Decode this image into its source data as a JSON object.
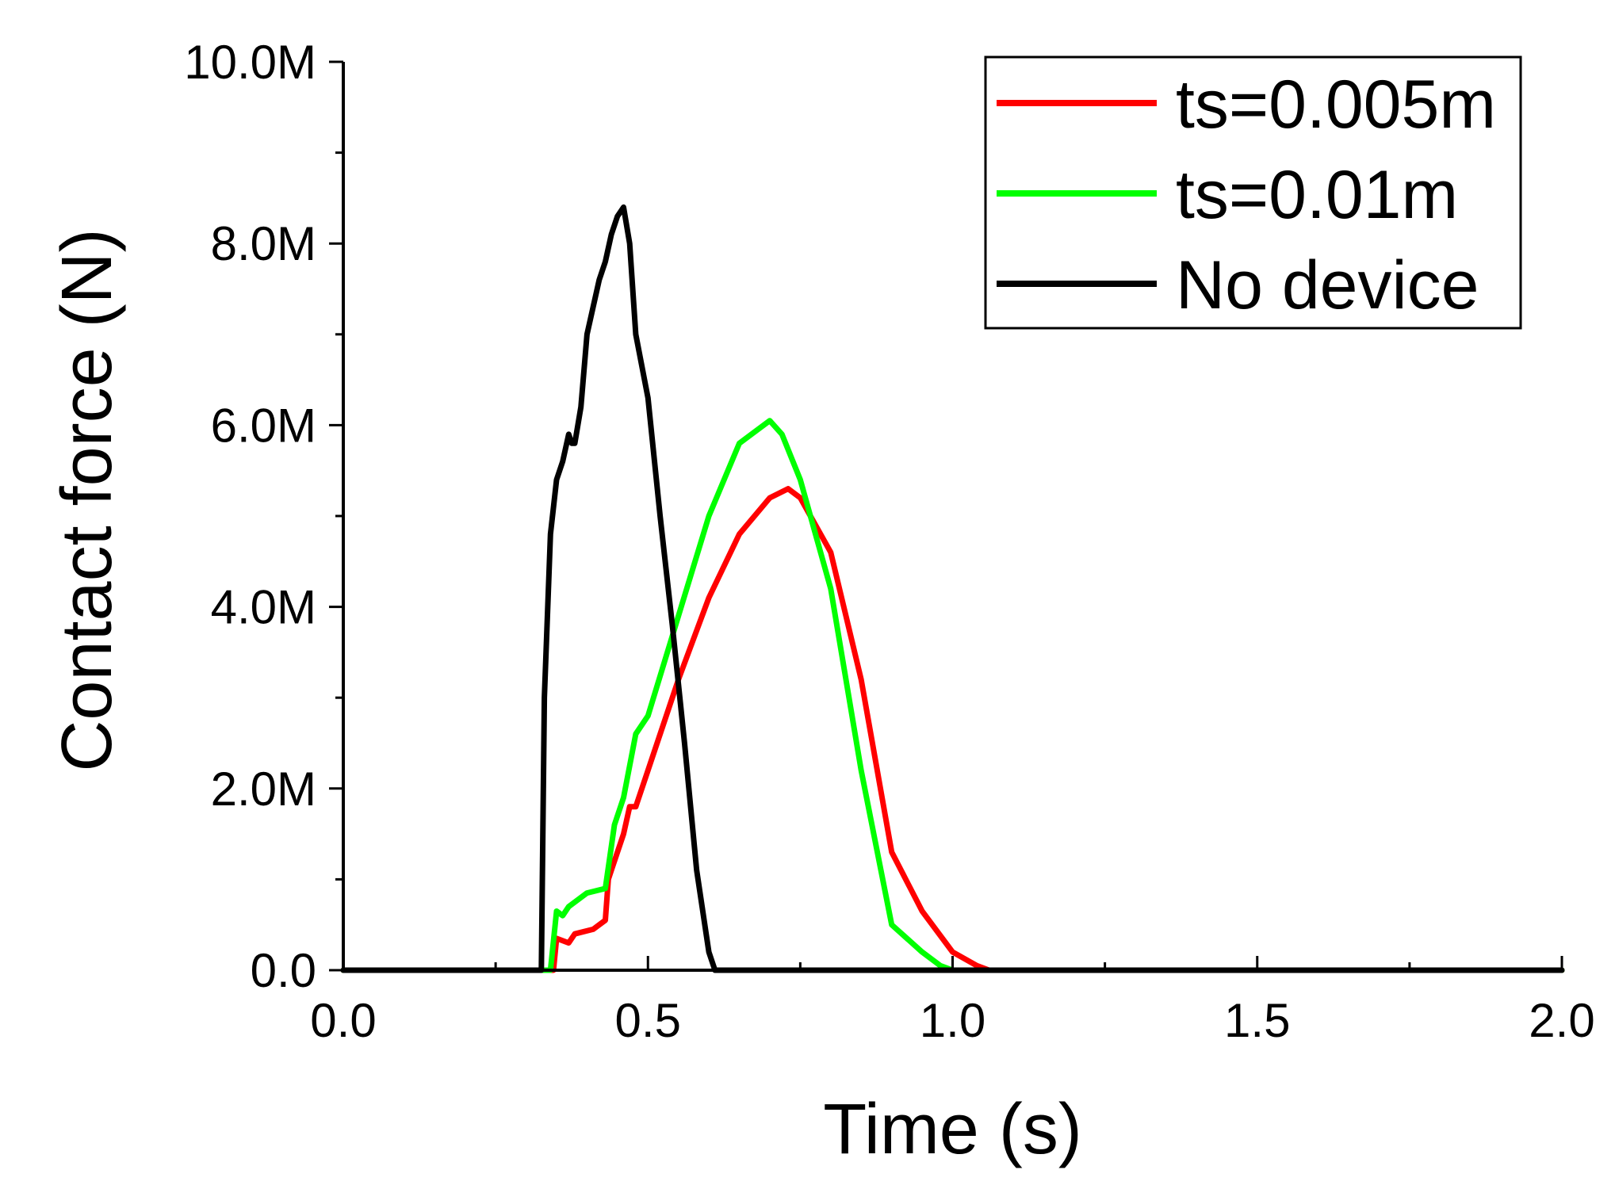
{
  "chart_data": {
    "type": "line",
    "title": "",
    "xlabel": "Time (s)",
    "ylabel": "Contact force (N)",
    "xlim": [
      0,
      2
    ],
    "ylim": [
      0,
      10000000
    ],
    "x_ticks": [
      0,
      0.5,
      1,
      1.5,
      2
    ],
    "x_tick_labels": [
      "0.0",
      "0.5",
      "1.0",
      "1.5",
      "2.0"
    ],
    "y_ticks": [
      0,
      2000000,
      4000000,
      6000000,
      8000000,
      10000000
    ],
    "y_tick_labels": [
      "0.0",
      "2.0M",
      "4.0M",
      "6.0M",
      "8.0M",
      "10.0M"
    ],
    "grid": false,
    "legend_position": "top-right",
    "series": [
      {
        "name": "ts=0.005m",
        "color": "#ff0000",
        "x": [
          0,
          0.33,
          0.345,
          0.35,
          0.37,
          0.38,
          0.41,
          0.43,
          0.435,
          0.44,
          0.46,
          0.47,
          0.48,
          0.5,
          0.55,
          0.6,
          0.65,
          0.7,
          0.73,
          0.75,
          0.8,
          0.85,
          0.9,
          0.95,
          1.0,
          1.04,
          1.06,
          2.0
        ],
        "y": [
          0,
          0,
          0,
          350000,
          300000,
          400000,
          450000,
          550000,
          1000000,
          1100000,
          1500000,
          1800000,
          1800000,
          2200000,
          3200000,
          4100000,
          4800000,
          5200000,
          5300000,
          5200000,
          4600000,
          3200000,
          1300000,
          650000,
          200000,
          50000,
          0,
          0
        ]
      },
      {
        "name": "ts=0.01m",
        "color": "#00ff00",
        "x": [
          0,
          0.33,
          0.34,
          0.35,
          0.36,
          0.37,
          0.4,
          0.43,
          0.445,
          0.46,
          0.48,
          0.5,
          0.55,
          0.6,
          0.65,
          0.68,
          0.7,
          0.72,
          0.75,
          0.8,
          0.85,
          0.9,
          0.95,
          0.98,
          1.0,
          2.0
        ],
        "y": [
          0,
          0,
          0,
          650000,
          600000,
          700000,
          850000,
          900000,
          1600000,
          1900000,
          2600000,
          2800000,
          3900000,
          5000000,
          5800000,
          5950000,
          6050000,
          5900000,
          5400000,
          4200000,
          2200000,
          500000,
          200000,
          50000,
          0,
          0
        ]
      },
      {
        "name": "No device",
        "color": "#000000",
        "x": [
          0,
          0.325,
          0.33,
          0.34,
          0.35,
          0.36,
          0.37,
          0.375,
          0.38,
          0.39,
          0.4,
          0.41,
          0.42,
          0.43,
          0.44,
          0.45,
          0.455,
          0.46,
          0.47,
          0.48,
          0.5,
          0.52,
          0.54,
          0.56,
          0.58,
          0.6,
          0.61,
          0.62,
          2.0
        ],
        "y": [
          0,
          0,
          3000000,
          4800000,
          5400000,
          5600000,
          5900000,
          5800000,
          5800000,
          6200000,
          7000000,
          7300000,
          7600000,
          7800000,
          8100000,
          8300000,
          8350000,
          8400000,
          8000000,
          7000000,
          6300000,
          5000000,
          3800000,
          2500000,
          1100000,
          200000,
          0,
          0,
          0
        ]
      }
    ]
  }
}
